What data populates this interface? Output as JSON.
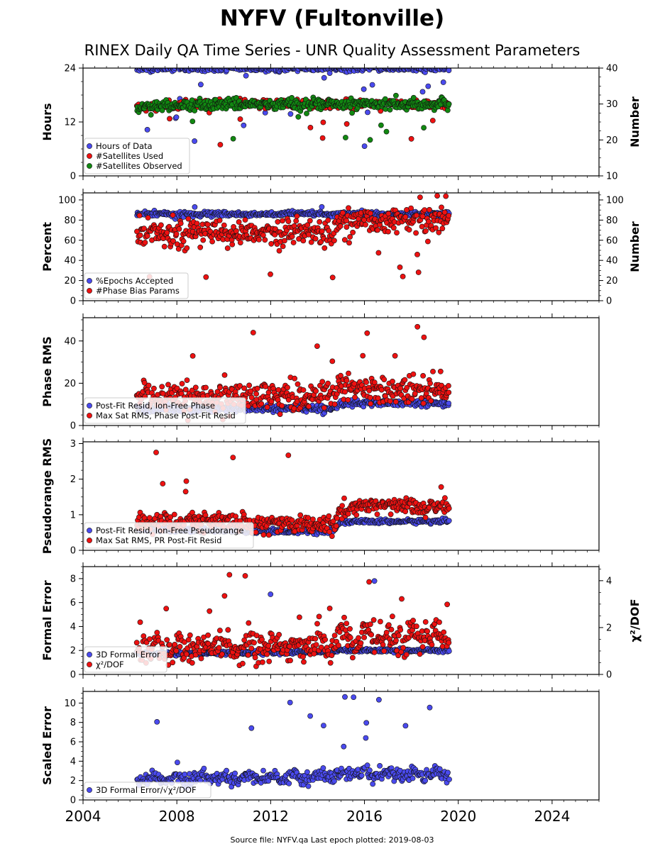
{
  "title": "NYFV (Fultonville)",
  "subtitle": "RINEX Daily QA Time Series - UNR Quality Assessment Parameters",
  "footer": "Source file: NYFV.qa Last epoch plotted: 2019-08-03",
  "colors": {
    "blue": "#4a4aee",
    "red": "#ee1111",
    "green": "#118811"
  },
  "x_axis": {
    "xlim": [
      2004,
      2026
    ],
    "ticks": [
      2004,
      2008,
      2012,
      2016,
      2020,
      2024
    ],
    "tick_labels": [
      "2004",
      "2008",
      "2012",
      "2016",
      "2020",
      "2024"
    ],
    "data_start": 2006.3,
    "data_end": 2019.6
  },
  "chart_data": [
    {
      "type": "scatter",
      "ylabel": "Hours",
      "ylim": [
        0,
        24
      ],
      "yticks": [
        0,
        12,
        24
      ],
      "ytick_labels": [
        "0",
        "12",
        "24"
      ],
      "y2label": "Number",
      "y2lim": [
        10,
        40
      ],
      "y2ticks": [
        10,
        20,
        30,
        40
      ],
      "y2tick_labels": [
        "10",
        "20",
        "30",
        "40"
      ],
      "legend_position": "lower-left",
      "series": [
        {
          "name": "Hours of Data",
          "color": "blue",
          "axis": "left",
          "baseline": [
            [
              2006.3,
              23.9
            ],
            [
              2019.6,
              23.9
            ]
          ],
          "noise": 0.3,
          "outlier_rate": 0.05,
          "outlier_range": [
            6,
            23
          ]
        },
        {
          "name": "#Satellites Used",
          "color": "red",
          "axis": "right",
          "baseline": [
            [
              2006.3,
              29.0
            ],
            [
              2007.5,
              29.5
            ],
            [
              2009.0,
              30.0
            ],
            [
              2014.5,
              30.0
            ],
            [
              2019.6,
              30.0
            ]
          ],
          "noise": 0.6,
          "outlier_rate": 0.03,
          "outlier_range": [
            18,
            29
          ]
        },
        {
          "name": "#Satellites Observed",
          "color": "green",
          "axis": "right",
          "baseline": [
            [
              2006.3,
              29.0
            ],
            [
              2007.5,
              29.5
            ],
            [
              2009.0,
              30.0
            ],
            [
              2014.5,
              30.0
            ],
            [
              2019.6,
              30.0
            ]
          ],
          "noise": 0.7,
          "outlier_rate": 0.03,
          "outlier_range": [
            20,
            29
          ]
        }
      ]
    },
    {
      "type": "scatter",
      "ylabel": "Percent",
      "ylim": [
        0,
        107
      ],
      "yticks": [
        0,
        20,
        40,
        60,
        80,
        100
      ],
      "ytick_labels": [
        "0",
        "20",
        "40",
        "60",
        "80",
        "100"
      ],
      "y2label": "Number",
      "y2lim": [
        0,
        107
      ],
      "y2ticks": [
        0,
        20,
        40,
        60,
        80,
        100
      ],
      "y2tick_labels": [
        "0",
        "20",
        "40",
        "60",
        "80",
        "100"
      ],
      "legend_position": "lower-left",
      "series": [
        {
          "name": "%Epochs Accepted",
          "color": "blue",
          "axis": "left",
          "baseline": [
            [
              2006.3,
              86
            ],
            [
              2019.6,
              86
            ]
          ],
          "noise": 1.2,
          "outlier_rate": 0.01,
          "outlier_range": [
            80,
            94
          ]
        },
        {
          "name": "#Phase Bias Params",
          "color": "red",
          "axis": "right",
          "baseline": [
            [
              2006.3,
              67
            ],
            [
              2014.6,
              69
            ],
            [
              2015.0,
              80
            ],
            [
              2019.6,
              78
            ]
          ],
          "noise": 7,
          "outlier_rate": 0.04,
          "outlier_range": [
            22,
            106
          ]
        }
      ]
    },
    {
      "type": "scatter",
      "ylabel": "Phase RMS",
      "ylim": [
        0,
        51
      ],
      "yticks": [
        0,
        20,
        40
      ],
      "ytick_labels": [
        "0",
        "20",
        "40"
      ],
      "legend_position": "lower-left",
      "series": [
        {
          "name": "Post-Fit Resid, Ion-Free Phase",
          "color": "blue",
          "axis": "left",
          "baseline": [
            [
              2006.3,
              8
            ],
            [
              2014.6,
              8
            ],
            [
              2015.0,
              10.5
            ],
            [
              2019.6,
              10.5
            ]
          ],
          "noise": 0.8,
          "outlier_rate": 0,
          "outlier_range": [
            8,
            12
          ]
        },
        {
          "name": "Max Sat RMS, Phase Post-Fit Resid",
          "color": "red",
          "axis": "left",
          "baseline": [
            [
              2006.3,
              13
            ],
            [
              2014.6,
              14
            ],
            [
              2015.0,
              17
            ],
            [
              2019.6,
              16
            ]
          ],
          "noise": 3.5,
          "outlier_rate": 0.03,
          "outlier_range": [
            22,
            49
          ]
        }
      ]
    },
    {
      "type": "scatter",
      "ylabel": "Pseudorange RMS",
      "ylim": [
        0,
        3.05
      ],
      "yticks": [
        0,
        1,
        2,
        3
      ],
      "ytick_labels": [
        "0",
        "1",
        "2",
        "3"
      ],
      "legend_position": "lower-left",
      "series": [
        {
          "name": "Post-Fit Resid, Ion-Free Pseudorange",
          "color": "blue",
          "axis": "left",
          "baseline": [
            [
              2006.3,
              0.58
            ],
            [
              2014.6,
              0.52
            ],
            [
              2015.0,
              0.8
            ],
            [
              2019.6,
              0.82
            ]
          ],
          "noise": 0.03,
          "outlier_rate": 0,
          "outlier_range": [
            0.5,
            1.0
          ]
        },
        {
          "name": "Max Sat RMS, PR Post-Fit Resid",
          "color": "red",
          "axis": "left",
          "baseline": [
            [
              2006.3,
              0.78
            ],
            [
              2010.0,
              0.82
            ],
            [
              2014.6,
              0.68
            ],
            [
              2015.0,
              1.15
            ],
            [
              2016.0,
              1.3
            ],
            [
              2019.6,
              1.2
            ]
          ],
          "noise": 0.12,
          "outlier_rate": 0.02,
          "outlier_range": [
            1.6,
            2.95
          ]
        }
      ]
    },
    {
      "type": "scatter",
      "ylabel": "Formal Error",
      "ylim": [
        0,
        9
      ],
      "yticks": [
        0,
        2,
        4,
        6,
        8
      ],
      "ytick_labels": [
        "0",
        "2",
        "4",
        "6",
        "8"
      ],
      "y2label": "χ²/DOF",
      "y2lim": [
        0,
        4.6
      ],
      "y2ticks": [
        0,
        2,
        4
      ],
      "y2tick_labels": [
        "0",
        "2",
        "4"
      ],
      "legend_position": "lower-left",
      "series": [
        {
          "name": "3D Formal Error",
          "color": "blue",
          "axis": "left",
          "baseline": [
            [
              2006.3,
              1.7
            ],
            [
              2014.6,
              1.9
            ],
            [
              2015.0,
              2.0
            ],
            [
              2019.6,
              2.0
            ]
          ],
          "noise": 0.08,
          "outlier_rate": 0.01,
          "outlier_range": [
            2.5,
            8.6
          ]
        },
        {
          "name": "χ²/DOF",
          "color": "red",
          "axis": "right",
          "baseline": [
            [
              2006.3,
              1.0
            ],
            [
              2014.6,
              1.1
            ],
            [
              2015.0,
              1.5
            ],
            [
              2019.6,
              1.5
            ]
          ],
          "noise": 0.3,
          "seasonal": 0.35,
          "outlier_rate": 0.03,
          "outlier_range": [
            2.2,
            4.4
          ]
        }
      ]
    },
    {
      "type": "scatter",
      "ylabel": "Scaled Error",
      "ylim": [
        0,
        11.2
      ],
      "yticks": [
        0,
        2,
        4,
        6,
        8,
        10
      ],
      "ytick_labels": [
        "0",
        "2",
        "4",
        "6",
        "8",
        "10"
      ],
      "legend_position": "lower-left",
      "series": [
        {
          "name": "3D Formal Error/√χ²/DOF",
          "color": "blue",
          "axis": "left",
          "baseline": [
            [
              2006.3,
              2.1
            ],
            [
              2014.6,
              2.3
            ],
            [
              2015.0,
              2.5
            ],
            [
              2019.6,
              2.6
            ]
          ],
          "noise": 0.35,
          "seasonal": 0.4,
          "outlier_rate": 0.03,
          "outlier_range": [
            3.5,
            10.8
          ]
        }
      ]
    }
  ]
}
